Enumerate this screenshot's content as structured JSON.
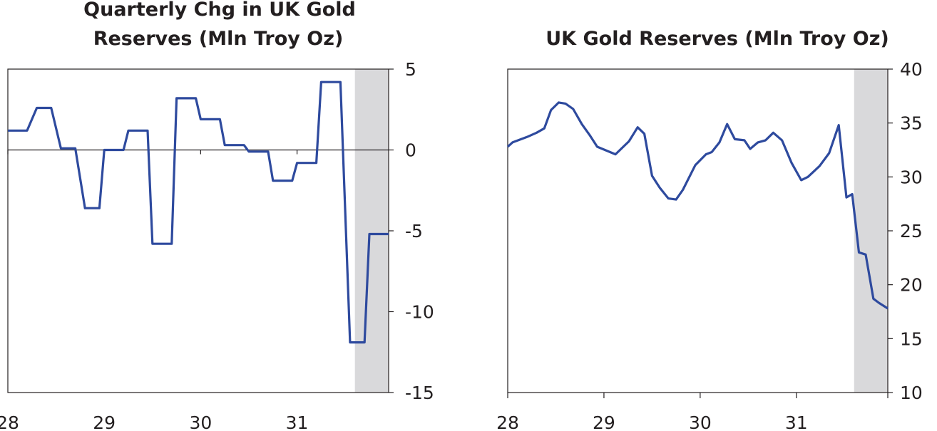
{
  "chart_data": [
    {
      "type": "line",
      "title_lines": [
        "Quarterly Chg in UK Gold",
        "Reserves (Mln Troy Oz)"
      ],
      "x_ticks": [
        {
          "value": 28,
          "label": "28"
        },
        {
          "value": 29,
          "label": "29"
        },
        {
          "value": 30,
          "label": "30"
        },
        {
          "value": 31,
          "label": "31"
        }
      ],
      "xlim": [
        28.0,
        31.95
      ],
      "ylim": [
        -15,
        5
      ],
      "y_ticks": [
        {
          "value": 5,
          "label": "5"
        },
        {
          "value": 0,
          "label": "0"
        },
        {
          "value": -5,
          "label": "-5"
        },
        {
          "value": -10,
          "label": "-10"
        },
        {
          "value": -15,
          "label": "-15"
        }
      ],
      "zero_line": true,
      "shaded_region": [
        31.6,
        31.95
      ],
      "series": [
        {
          "name": "Quarterly change",
          "color": "#2e4a9e",
          "x": [
            28.0,
            28.2,
            28.3,
            28.45,
            28.55,
            28.7,
            28.8,
            28.95,
            29.0,
            29.2,
            29.25,
            29.45,
            29.5,
            29.7,
            29.75,
            29.95,
            30.0,
            30.2,
            30.25,
            30.45,
            30.5,
            30.7,
            30.75,
            30.95,
            31.0,
            31.2,
            31.25,
            31.45,
            31.55,
            31.7,
            31.75,
            31.95
          ],
          "y": [
            1.2,
            1.2,
            2.6,
            2.6,
            0.1,
            0.1,
            -3.6,
            -3.6,
            0.0,
            0.0,
            1.2,
            1.2,
            -5.8,
            -5.8,
            3.2,
            3.2,
            1.9,
            1.9,
            0.3,
            0.3,
            -0.1,
            -0.1,
            -1.9,
            -1.9,
            -0.8,
            -0.8,
            4.2,
            4.2,
            -11.9,
            -11.9,
            -5.2,
            -5.2
          ]
        }
      ]
    },
    {
      "type": "line",
      "title_lines": [
        "UK Gold Reserves (Mln Troy Oz)"
      ],
      "x_ticks": [
        {
          "value": 28,
          "label": "28"
        },
        {
          "value": 29,
          "label": "29"
        },
        {
          "value": 30,
          "label": "30"
        },
        {
          "value": 31,
          "label": "31"
        }
      ],
      "xlim": [
        28.0,
        31.95
      ],
      "ylim": [
        10,
        40
      ],
      "y_ticks": [
        {
          "value": 40,
          "label": "40"
        },
        {
          "value": 35,
          "label": "35"
        },
        {
          "value": 30,
          "label": "30"
        },
        {
          "value": 25,
          "label": "25"
        },
        {
          "value": 20,
          "label": "20"
        },
        {
          "value": 15,
          "label": "15"
        },
        {
          "value": 10,
          "label": "10"
        }
      ],
      "shaded_region": [
        31.6,
        31.95
      ],
      "series": [
        {
          "name": "Gold reserves",
          "color": "#2e4a9e",
          "x": [
            28.0,
            28.05,
            28.2,
            28.3,
            28.38,
            28.45,
            28.53,
            28.6,
            28.68,
            28.77,
            28.85,
            28.93,
            29.12,
            29.26,
            29.35,
            29.42,
            29.5,
            29.58,
            29.67,
            29.75,
            29.82,
            29.95,
            30.06,
            30.12,
            30.2,
            30.28,
            30.36,
            30.46,
            30.52,
            30.6,
            30.68,
            30.76,
            30.85,
            30.95,
            31.05,
            31.12,
            31.24,
            31.34,
            31.44,
            31.52,
            31.58,
            31.65,
            31.72,
            31.8,
            31.86,
            31.95
          ],
          "y": [
            32.8,
            33.2,
            33.7,
            34.1,
            34.5,
            36.2,
            36.9,
            36.8,
            36.3,
            34.9,
            33.9,
            32.8,
            32.1,
            33.3,
            34.6,
            34.0,
            30.1,
            29.0,
            28.0,
            27.9,
            28.8,
            31.1,
            32.1,
            32.3,
            33.2,
            34.9,
            33.5,
            33.4,
            32.6,
            33.2,
            33.4,
            34.1,
            33.4,
            31.3,
            29.7,
            30.0,
            31.0,
            32.2,
            34.8,
            28.1,
            28.4,
            23.0,
            22.8,
            18.7,
            18.3,
            17.8
          ]
        }
      ]
    }
  ]
}
